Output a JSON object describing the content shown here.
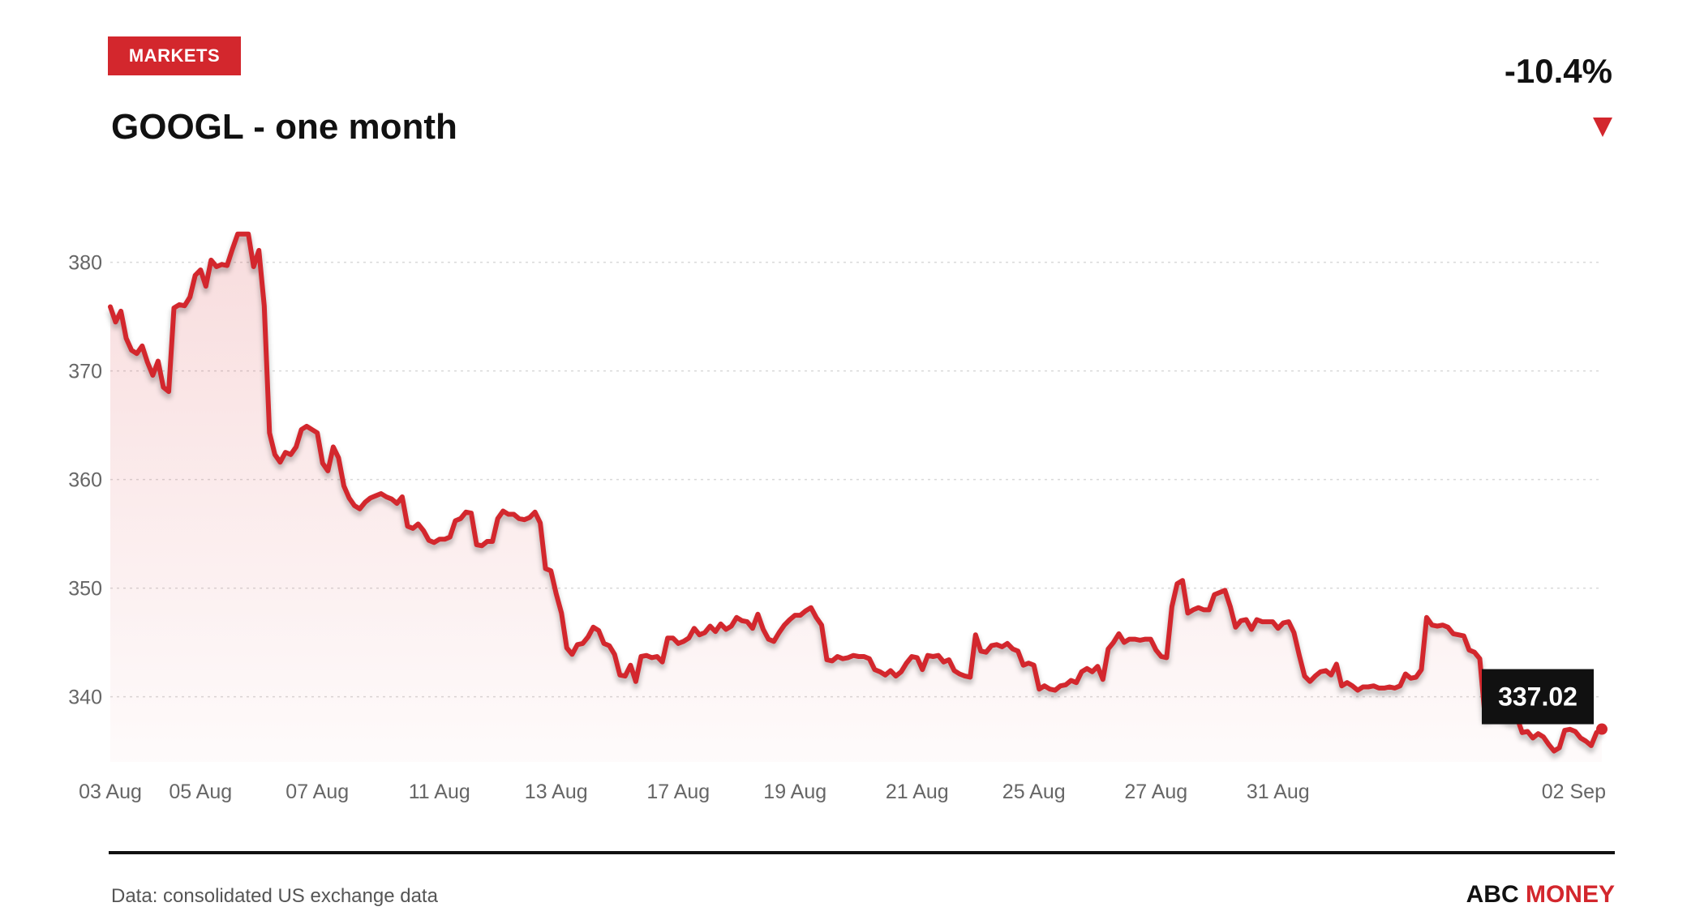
{
  "header": {
    "badge": "MARKETS",
    "title": "GOOGL - one month",
    "change": "-10.4%"
  },
  "footer": {
    "source": "Data: consolidated US exchange data",
    "brand_part1": "ABC",
    "brand_part2": "MONEY"
  },
  "colors": {
    "accent": "#d3272d",
    "text": "#111111",
    "muted": "#666666",
    "grid": "#d9d9d9",
    "callout_bg": "#111111"
  },
  "chart_data": {
    "type": "area",
    "grid": true,
    "ylim": [
      334,
      384
    ],
    "yticks": [
      340,
      350,
      360,
      370,
      380
    ],
    "xticks": [
      {
        "label": "03 Aug",
        "index": 0
      },
      {
        "label": "05 Aug",
        "index": 17
      },
      {
        "label": "07 Aug",
        "index": 39
      },
      {
        "label": "11 Aug",
        "index": 62
      },
      {
        "label": "13 Aug",
        "index": 84
      },
      {
        "label": "17 Aug",
        "index": 107
      },
      {
        "label": "19 Aug",
        "index": 129
      },
      {
        "label": "21 Aug",
        "index": 152
      },
      {
        "label": "25 Aug",
        "index": 174
      },
      {
        "label": "27 Aug",
        "index": 197
      },
      {
        "label": "31 Aug",
        "index": 220
      },
      {
        "label": "02 Sep",
        "index": 242
      }
    ],
    "last_value_label": "337.02",
    "series": [
      {
        "values": [
          375.9,
          374.5,
          375.5,
          373.0,
          371.9,
          371.6,
          372.3,
          370.8,
          369.6,
          370.9,
          368.5,
          368.1,
          375.8,
          376.1,
          376.0,
          376.8,
          378.8,
          379.3,
          377.8,
          380.2,
          379.6,
          379.8,
          379.7,
          381.2,
          382.6,
          382.6,
          382.6,
          379.6,
          381.1,
          376.0,
          364.3,
          362.3,
          361.6,
          362.5,
          362.3,
          363.0,
          364.6,
          364.9,
          364.6,
          364.3,
          361.5,
          360.8,
          363.0,
          362.0,
          359.4,
          358.3,
          357.6,
          357.3,
          357.9,
          358.3,
          358.5,
          358.7,
          358.4,
          358.2,
          357.8,
          358.4,
          355.7,
          355.5,
          355.9,
          355.3,
          354.4,
          354.2,
          354.5,
          354.5,
          354.7,
          356.2,
          356.4,
          357.0,
          356.9,
          354.0,
          353.9,
          354.3,
          354.3,
          356.4,
          357.1,
          356.8,
          356.8,
          356.4,
          356.3,
          356.5,
          357.0,
          356.0,
          351.8,
          351.6,
          349.5,
          347.7,
          344.5,
          343.9,
          344.8,
          344.9,
          345.5,
          346.4,
          346.1,
          344.9,
          344.7,
          343.9,
          342.0,
          341.9,
          342.9,
          341.4,
          343.7,
          343.8,
          343.6,
          343.7,
          343.2,
          345.4,
          345.4,
          344.9,
          345.1,
          345.4,
          346.3,
          345.7,
          345.9,
          346.5,
          346.0,
          346.7,
          346.2,
          346.5,
          347.3,
          347.0,
          346.9,
          346.3,
          347.6,
          346.2,
          345.3,
          345.1,
          345.9,
          346.6,
          347.1,
          347.5,
          347.5,
          347.9,
          348.2,
          347.3,
          346.6,
          343.4,
          343.3,
          343.7,
          343.5,
          343.6,
          343.8,
          343.7,
          343.7,
          343.5,
          342.5,
          342.3,
          342.0,
          342.4,
          341.9,
          342.3,
          343.1,
          343.7,
          343.6,
          342.5,
          343.8,
          343.7,
          343.8,
          343.2,
          343.4,
          342.4,
          342.1,
          341.9,
          341.8,
          345.7,
          344.2,
          344.1,
          344.7,
          344.8,
          344.6,
          344.9,
          344.4,
          344.2,
          342.9,
          343.1,
          342.9,
          340.7,
          341.0,
          340.7,
          340.6,
          341.0,
          341.1,
          341.5,
          341.3,
          342.3,
          342.6,
          342.3,
          342.8,
          341.6,
          344.4,
          345.0,
          345.8,
          345.0,
          345.3,
          345.3,
          345.2,
          345.3,
          345.3,
          344.3,
          343.7,
          343.6,
          348.3,
          350.4,
          350.7,
          347.7,
          348.0,
          348.2,
          348.0,
          348.0,
          349.4,
          349.6,
          349.8,
          348.3,
          346.4,
          347.0,
          347.1,
          346.2,
          347.1,
          346.9,
          346.9,
          346.9,
          346.3,
          346.8,
          346.9,
          345.9,
          343.8,
          341.9,
          341.4,
          341.9,
          342.3,
          342.4,
          342.0,
          343.0,
          341.0,
          341.3,
          341.0,
          340.6,
          340.9,
          340.9,
          341.0,
          340.8,
          340.8,
          340.9,
          340.8,
          341.0,
          342.1,
          341.7,
          341.8,
          342.5,
          347.3,
          346.6,
          346.5,
          346.6,
          346.4,
          345.8,
          345.7,
          345.6,
          344.3,
          344.1,
          343.5,
          338.1,
          338.2,
          338.3,
          338.2,
          338.0,
          337.8,
          338.1,
          336.7,
          336.8,
          336.2,
          336.6,
          336.3,
          335.6,
          335.0,
          335.3,
          336.9,
          337.0,
          336.8,
          336.2,
          335.9,
          335.5,
          336.7,
          337.02
        ]
      }
    ]
  }
}
